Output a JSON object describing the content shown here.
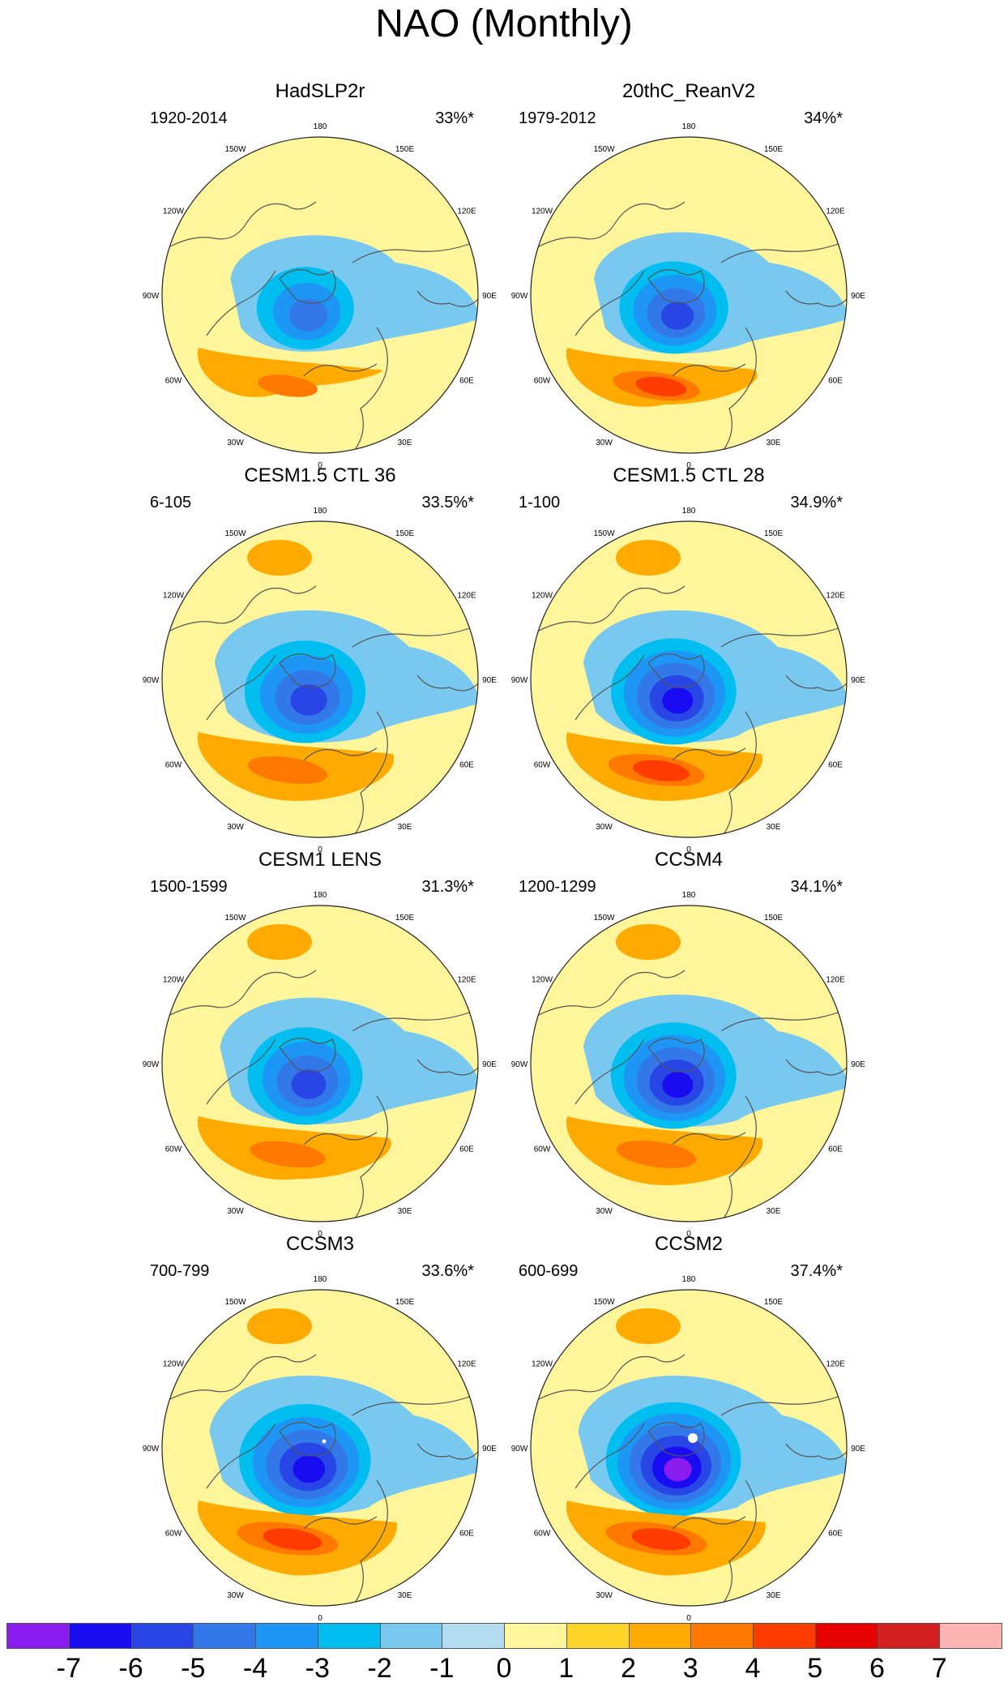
{
  "figure": {
    "title": "NAO (Monthly)"
  },
  "panels": [
    {
      "title": "HadSLP2r",
      "period": "1920-2014",
      "percent": "33%*",
      "neg_scale": 0.85,
      "pos_scale": 0.75,
      "neg_peak": -4,
      "pos_peak": 3,
      "pacific_high": false,
      "small_dot": false,
      "big_dot": false
    },
    {
      "title": "20thC_ReanV2",
      "period": "1979-2012",
      "percent": "34%*",
      "neg_scale": 0.9,
      "pos_scale": 0.9,
      "neg_peak": -5,
      "pos_peak": 4,
      "pacific_high": false,
      "small_dot": false,
      "big_dot": false
    },
    {
      "title": "CESM1.5 CTL 36",
      "period": "6-105",
      "percent": "33.5%*",
      "neg_scale": 1.0,
      "pos_scale": 1.0,
      "neg_peak": -5,
      "pos_peak": 3,
      "pacific_high": true,
      "small_dot": false,
      "big_dot": false
    },
    {
      "title": "CESM1.5 CTL 28",
      "period": "1-100",
      "percent": "34.9%*",
      "neg_scale": 1.0,
      "pos_scale": 1.0,
      "neg_peak": -6,
      "pos_peak": 4,
      "pacific_high": true,
      "small_dot": false,
      "big_dot": false
    },
    {
      "title": "CESM1 LENS",
      "period": "1500-1599",
      "percent": "31.3%*",
      "neg_scale": 0.95,
      "pos_scale": 0.95,
      "neg_peak": -5,
      "pos_peak": 3,
      "pacific_high": true,
      "small_dot": false,
      "big_dot": false
    },
    {
      "title": "CCSM4",
      "period": "1200-1299",
      "percent": "34.1%*",
      "neg_scale": 1.0,
      "pos_scale": 1.0,
      "neg_peak": -6,
      "pos_peak": 3,
      "pacific_high": true,
      "small_dot": false,
      "big_dot": false
    },
    {
      "title": "CCSM3",
      "period": "700-799",
      "percent": "33.6%*",
      "neg_scale": 1.05,
      "pos_scale": 1.05,
      "neg_peak": -6,
      "pos_peak": 4,
      "pacific_high": true,
      "small_dot": true,
      "big_dot": false
    },
    {
      "title": "CCSM2",
      "period": "600-699",
      "percent": "37.4%*",
      "neg_scale": 1.05,
      "pos_scale": 1.05,
      "neg_peak": -7,
      "pos_peak": 4,
      "pacific_high": true,
      "small_dot": false,
      "big_dot": true
    }
  ],
  "longitude_labels": [
    "180",
    "150E",
    "120E",
    "90E",
    "60E",
    "30E",
    "0",
    "30W",
    "60W",
    "90W",
    "120W",
    "150W"
  ],
  "colorbar": {
    "colors": [
      "#8a1cf0",
      "#1a0cf0",
      "#2846e6",
      "#3278e8",
      "#1e96f5",
      "#00bef0",
      "#78c8f0",
      "#b4dcf0",
      "#fff59a",
      "#ffd42a",
      "#ffaa00",
      "#ff7800",
      "#ff3c00",
      "#e60000",
      "#d21e1e",
      "#ffb4b4"
    ],
    "labels": [
      "-7",
      "-6",
      "-5",
      "-4",
      "-3",
      "-2",
      "-1",
      "0",
      "1",
      "2",
      "3",
      "4",
      "5",
      "6",
      "7"
    ]
  },
  "palette": {
    "ocean": "#fff59a",
    "coast": "#555555",
    "grid_outline": "#222222",
    "dot": "#ffffff"
  }
}
